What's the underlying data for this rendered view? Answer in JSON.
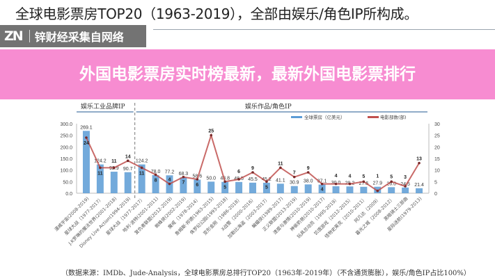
{
  "headline": "全球电影票房TOP20（1963-2019），全部由娱乐/角色IP所构成。",
  "watermark": {
    "logo": "ZN",
    "text": "锌财经采集自网络"
  },
  "banner": {
    "title": "外国电影票房实时榜最新，最新外国电影票排行"
  },
  "source": "（数据来源：IMDb、Jude-Analysis，全球电影票房总排行TOP20（1963年-2019年）（不含通货膨胀），娱乐/角色IP占比100%）",
  "chart_data": {
    "type": "bar+line",
    "annotations": {
      "left_region": "娱乐工业品牌IP",
      "right_region": "娱乐作品/角色IP"
    },
    "categories": [
      "漫威宇宙(2008-2019)",
      "星球大战（1977-2017）",
      "J.K罗琳的魔法世界(2001-2018)",
      "Disney Live Action(1994-2019)",
      "星球大战（1977-2017）",
      "哈利·波特(2001-2011)",
      "复仇者联盟(2012-2019)",
      "蜘蛛侠(2002-2019)",
      "魔戒（1978-2014）",
      "詹姆斯·邦德(1963-2015)",
      "侏罗纪公园(1993-2018)",
      "变形金刚（1986-2018）",
      "X战警（2000-2016）",
      "加勒比海盗（2003-2017）",
      "蝙蝠侠(1989-2017)",
      "正义联盟(2013-2019)",
      "速度与激情(2010-2019)",
      "神偷奶爸(2010-2017)",
      "玩具总动员（1995-2019）",
      "饥饿游戏（2012-2015）",
      "怪物史莱克（2010-2011）",
      "阿凡达（2009）",
      "暮光之城（2008-2012）",
      "黑暗骑士三部曲",
      "星际迷航(1979-2013)"
    ],
    "series": [
      {
        "name": "全球票房（亿美元）",
        "type": "bar",
        "axis": "left",
        "color": "#5b9bd5",
        "values": [
          269.1,
          124.2,
          92.9,
          90.7,
          124.2,
          78.0,
          77.2,
          68.3,
          58.6,
          50.0,
          48.8,
          48.5,
          45.5,
          45.2,
          41.1,
          30.9,
          38.0,
          37.1,
          30.0,
          29.2,
          27.6,
          27.9,
          26.0,
          24.5,
          21.4
        ]
      },
      {
        "name": "电影部数(部)",
        "type": "line",
        "axis": "right",
        "color": "#c0504d",
        "values": [
          24,
          11,
          11,
          14,
          11,
          8,
          4,
          7,
          6,
          25,
          5,
          6,
          9,
          5,
          11,
          7,
          9,
          4,
          4,
          4,
          5,
          1,
          5,
          3,
          13
        ]
      }
    ],
    "y_left": {
      "min": 0,
      "max": 300,
      "ticks": [
        "0.0",
        "50.0",
        "100.0",
        "150.0",
        "200.0",
        "250.0",
        "300.0"
      ]
    },
    "y_right": {
      "min": 0,
      "max": 30,
      "ticks": [
        "0",
        "5",
        "10",
        "15",
        "20",
        "25",
        "30"
      ]
    },
    "legend_placement": "top-right",
    "grid": false
  }
}
